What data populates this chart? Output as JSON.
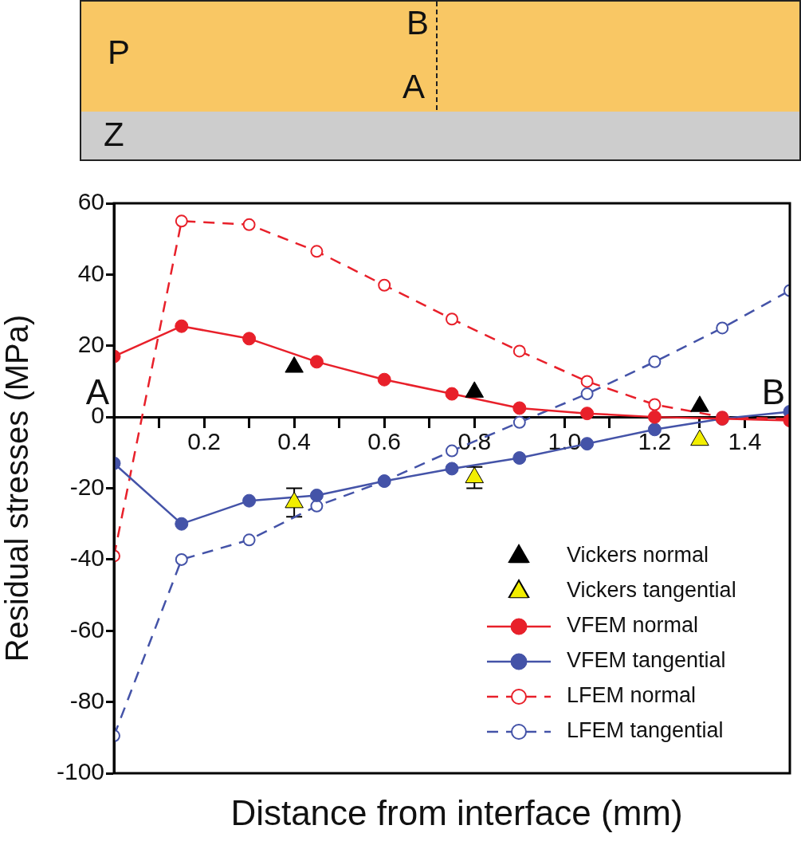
{
  "chart_data": {
    "type": "line",
    "xlabel": "Distance from interface (mm)",
    "ylabel": "Residual stresses (MPa)",
    "x": [
      0,
      0.15,
      0.3,
      0.45,
      0.6,
      0.75,
      0.9,
      1.05,
      1.2,
      1.35,
      1.5
    ],
    "series": [
      {
        "name": "Vickers normal",
        "type": "scatter",
        "marker": "triangle",
        "color": "#000000",
        "x": [
          0.4,
          0.8,
          1.3
        ],
        "values": [
          14,
          7,
          3
        ]
      },
      {
        "name": "Vickers tangential",
        "type": "scatter",
        "marker": "triangle",
        "color": "#f2ee00",
        "x": [
          0.4,
          0.8,
          1.3
        ],
        "values": [
          -24,
          -17,
          -6.5
        ],
        "errors": [
          4,
          3,
          null
        ]
      },
      {
        "name": "VFEM normal",
        "marker": "circle",
        "line_style": "solid",
        "color": "#e8202a",
        "values": [
          17,
          25.5,
          22,
          15.5,
          10.5,
          6.5,
          2.5,
          1,
          0,
          -0.5,
          -1
        ]
      },
      {
        "name": "VFEM tangential",
        "marker": "circle",
        "line_style": "solid",
        "color": "#4453a8",
        "values": [
          -13,
          -30,
          -23.5,
          -22,
          -18,
          -14.5,
          -11.5,
          -7.5,
          -3.5,
          -0.5,
          1.5
        ]
      },
      {
        "name": "LFEM normal",
        "marker": "circle-open",
        "line_style": "dashed",
        "color": "#e8202a",
        "values": [
          -39,
          55,
          54,
          46.5,
          37,
          27.5,
          18.5,
          10,
          3.5,
          0,
          -0.5
        ]
      },
      {
        "name": "LFEM tangential",
        "marker": "circle-open",
        "line_style": "dashed",
        "color": "#4453a8",
        "values": [
          -89.5,
          -40,
          -34.5,
          -25,
          -18,
          -9.5,
          -1.5,
          6.5,
          15.5,
          25,
          35.5
        ]
      }
    ],
    "xlim": [
      0,
      1.5
    ],
    "ylim": [
      -100,
      60
    ],
    "xticks": [
      {
        "value": 0.1,
        "label": null
      },
      0.2,
      {
        "value": 0.3,
        "label": null
      },
      0.4,
      {
        "value": 0.5,
        "label": null
      },
      0.6,
      {
        "value": 0.7,
        "label": null
      },
      0.8,
      {
        "value": 0.9,
        "label": null
      },
      {
        "value": 1.0,
        "label": "1.0"
      },
      {
        "value": 1.1,
        "label": null
      },
      1.2,
      {
        "value": 1.3,
        "label": null
      },
      1.4
    ],
    "yticks": [
      -100,
      -80,
      -60,
      -40,
      -20,
      0,
      20,
      40,
      60
    ],
    "grid": false,
    "legend": "bottom right",
    "annotations": [
      "P",
      "B",
      "A",
      "Z",
      "A",
      "B"
    ]
  }
}
